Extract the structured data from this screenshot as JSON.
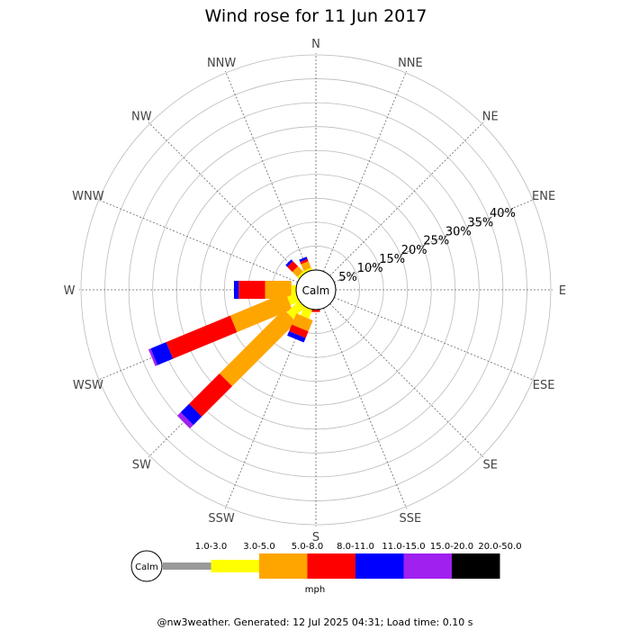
{
  "chart_data": {
    "type": "wind-rose",
    "title": "Wind rose for 11 Jun 2017",
    "directions": [
      "N",
      "NNE",
      "NE",
      "ENE",
      "E",
      "ESE",
      "SE",
      "SSE",
      "S",
      "SSW",
      "SW",
      "WSW",
      "W",
      "WNW",
      "NW",
      "NNW"
    ],
    "ring_labels": [
      "5%",
      "10%",
      "15%",
      "20%",
      "25%",
      "30%",
      "35%",
      "40%"
    ],
    "rmax_percent": 45,
    "calm_label": "Calm",
    "speed_unit": "mph",
    "bins": [
      {
        "label": "1.0-3.0",
        "color": "#999999"
      },
      {
        "label": "3.0-5.0",
        "color": "#ffff00"
      },
      {
        "label": "5.0-8.0",
        "color": "#ffa500"
      },
      {
        "label": "8.0-11.0",
        "color": "#ff0000"
      },
      {
        "label": "11.0-15.0",
        "color": "#0000ff"
      },
      {
        "label": "15.0-20.0",
        "color": "#a020f0"
      },
      {
        "label": "20.0-50.0",
        "color": "#000000"
      }
    ],
    "sectors": [
      {
        "dir": "NNW",
        "values": [
          0,
          0.5,
          1.5,
          0.5,
          0.5,
          0,
          0
        ]
      },
      {
        "dir": "NW",
        "values": [
          0,
          0.5,
          1.5,
          1.5,
          0.5,
          0,
          0
        ]
      },
      {
        "dir": "W",
        "values": [
          0,
          1.0,
          5.5,
          5.5,
          1.0,
          0,
          0
        ]
      },
      {
        "dir": "WSW",
        "values": [
          0,
          2.0,
          12.5,
          14.5,
          3.5,
          0.5,
          0
        ]
      },
      {
        "dir": "SW",
        "values": [
          0,
          3.5,
          19.0,
          9.0,
          2.5,
          1.0,
          0
        ]
      },
      {
        "dir": "SSW",
        "values": [
          0,
          2.0,
          2.5,
          1.5,
          1.0,
          0,
          0
        ]
      },
      {
        "dir": "S",
        "values": [
          0,
          0,
          0,
          0.5,
          0,
          0,
          0
        ]
      }
    ]
  },
  "footer": "@nw3weather. Generated: 12 Jul 2025 04:31; Load time: 0.10 s"
}
